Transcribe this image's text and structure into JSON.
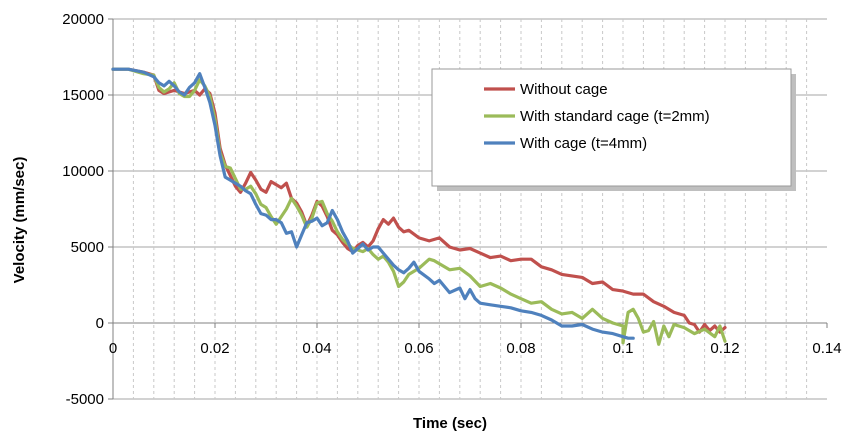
{
  "chart_data": {
    "type": "line",
    "title": "",
    "xlabel": "Time (sec)",
    "ylabel": "Velocity (mm/sec)",
    "xlim": [
      0,
      0.14
    ],
    "ylim": [
      -5000,
      20000
    ],
    "x_ticks": [
      "0",
      "0.02",
      "0.04",
      "0.06",
      "0.08",
      "0.1",
      "0.12",
      "0.14"
    ],
    "y_ticks": [
      "20000",
      "15000",
      "10000",
      "5000",
      "0",
      "-5000"
    ],
    "grid": "horizontal major, vertical dashed minor",
    "legend_position": "top-right",
    "series": [
      {
        "name": "Without cage",
        "color": "#c0504d",
        "points": [
          [
            0,
            16700
          ],
          [
            0.003,
            16700
          ],
          [
            0.006,
            16500
          ],
          [
            0.008,
            16300
          ],
          [
            0.009,
            15300
          ],
          [
            0.01,
            15100
          ],
          [
            0.012,
            15300
          ],
          [
            0.014,
            15100
          ],
          [
            0.016,
            15300
          ],
          [
            0.017,
            15000
          ],
          [
            0.018,
            15400
          ],
          [
            0.019,
            15100
          ],
          [
            0.02,
            13800
          ],
          [
            0.021,
            11500
          ],
          [
            0.022,
            10400
          ],
          [
            0.023,
            9700
          ],
          [
            0.024,
            9000
          ],
          [
            0.025,
            8600
          ],
          [
            0.026,
            9200
          ],
          [
            0.027,
            9900
          ],
          [
            0.028,
            9400
          ],
          [
            0.029,
            8800
          ],
          [
            0.03,
            8600
          ],
          [
            0.031,
            9300
          ],
          [
            0.033,
            8900
          ],
          [
            0.034,
            9200
          ],
          [
            0.035,
            8200
          ],
          [
            0.036,
            7900
          ],
          [
            0.037,
            7300
          ],
          [
            0.038,
            6400
          ],
          [
            0.039,
            7100
          ],
          [
            0.04,
            8000
          ],
          [
            0.041,
            7700
          ],
          [
            0.042,
            7000
          ],
          [
            0.043,
            6100
          ],
          [
            0.044,
            5800
          ],
          [
            0.045,
            5300
          ],
          [
            0.046,
            4900
          ],
          [
            0.047,
            4700
          ],
          [
            0.048,
            5100
          ],
          [
            0.049,
            5300
          ],
          [
            0.05,
            5000
          ],
          [
            0.051,
            5400
          ],
          [
            0.052,
            6200
          ],
          [
            0.053,
            6800
          ],
          [
            0.054,
            6500
          ],
          [
            0.055,
            6900
          ],
          [
            0.056,
            6300
          ],
          [
            0.057,
            6000
          ],
          [
            0.058,
            6100
          ],
          [
            0.06,
            5600
          ],
          [
            0.062,
            5400
          ],
          [
            0.064,
            5600
          ],
          [
            0.066,
            5000
          ],
          [
            0.068,
            4800
          ],
          [
            0.07,
            4900
          ],
          [
            0.072,
            4600
          ],
          [
            0.074,
            4300
          ],
          [
            0.076,
            4400
          ],
          [
            0.078,
            4100
          ],
          [
            0.08,
            4200
          ],
          [
            0.082,
            4200
          ],
          [
            0.084,
            3700
          ],
          [
            0.086,
            3500
          ],
          [
            0.088,
            3200
          ],
          [
            0.09,
            3100
          ],
          [
            0.092,
            3000
          ],
          [
            0.094,
            2600
          ],
          [
            0.096,
            2700
          ],
          [
            0.098,
            2200
          ],
          [
            0.1,
            2100
          ],
          [
            0.102,
            1900
          ],
          [
            0.104,
            1900
          ],
          [
            0.106,
            1400
          ],
          [
            0.108,
            1100
          ],
          [
            0.11,
            700
          ],
          [
            0.112,
            500
          ],
          [
            0.113,
            0
          ],
          [
            0.114,
            -100
          ],
          [
            0.115,
            -600
          ],
          [
            0.116,
            -100
          ],
          [
            0.117,
            -500
          ],
          [
            0.118,
            -200
          ],
          [
            0.119,
            -600
          ],
          [
            0.12,
            -300
          ]
        ]
      },
      {
        "name": "With standard cage (t=2mm)",
        "color": "#9bbb59",
        "points": [
          [
            0,
            16700
          ],
          [
            0.003,
            16700
          ],
          [
            0.006,
            16400
          ],
          [
            0.008,
            16300
          ],
          [
            0.009,
            15500
          ],
          [
            0.01,
            15200
          ],
          [
            0.011,
            15400
          ],
          [
            0.012,
            15800
          ],
          [
            0.013,
            15100
          ],
          [
            0.014,
            14900
          ],
          [
            0.015,
            14900
          ],
          [
            0.016,
            15300
          ],
          [
            0.017,
            16000
          ],
          [
            0.018,
            15600
          ],
          [
            0.019,
            14900
          ],
          [
            0.02,
            13400
          ],
          [
            0.021,
            11200
          ],
          [
            0.022,
            10300
          ],
          [
            0.023,
            10200
          ],
          [
            0.024,
            9500
          ],
          [
            0.025,
            8800
          ],
          [
            0.026,
            8800
          ],
          [
            0.027,
            9000
          ],
          [
            0.028,
            8500
          ],
          [
            0.029,
            7800
          ],
          [
            0.03,
            7600
          ],
          [
            0.031,
            7000
          ],
          [
            0.032,
            6500
          ],
          [
            0.033,
            7000
          ],
          [
            0.034,
            7500
          ],
          [
            0.035,
            8200
          ],
          [
            0.036,
            7700
          ],
          [
            0.037,
            7100
          ],
          [
            0.038,
            6300
          ],
          [
            0.039,
            6900
          ],
          [
            0.04,
            7900
          ],
          [
            0.041,
            8000
          ],
          [
            0.042,
            7200
          ],
          [
            0.043,
            6700
          ],
          [
            0.044,
            6000
          ],
          [
            0.045,
            5500
          ],
          [
            0.046,
            5200
          ],
          [
            0.047,
            4900
          ],
          [
            0.048,
            4800
          ],
          [
            0.049,
            4700
          ],
          [
            0.05,
            4900
          ],
          [
            0.051,
            4500
          ],
          [
            0.052,
            4200
          ],
          [
            0.053,
            4400
          ],
          [
            0.054,
            4000
          ],
          [
            0.055,
            3400
          ],
          [
            0.056,
            2400
          ],
          [
            0.057,
            2700
          ],
          [
            0.058,
            3200
          ],
          [
            0.06,
            3600
          ],
          [
            0.062,
            4200
          ],
          [
            0.063,
            4100
          ],
          [
            0.064,
            3900
          ],
          [
            0.066,
            3500
          ],
          [
            0.068,
            3600
          ],
          [
            0.07,
            3100
          ],
          [
            0.072,
            2400
          ],
          [
            0.074,
            2600
          ],
          [
            0.076,
            2300
          ],
          [
            0.078,
            1900
          ],
          [
            0.08,
            1600
          ],
          [
            0.082,
            1300
          ],
          [
            0.084,
            1400
          ],
          [
            0.086,
            900
          ],
          [
            0.088,
            600
          ],
          [
            0.09,
            700
          ],
          [
            0.092,
            300
          ],
          [
            0.094,
            900
          ],
          [
            0.096,
            300
          ],
          [
            0.098,
            0
          ],
          [
            0.1,
            -200
          ],
          [
            0.1,
            -1300
          ],
          [
            0.101,
            700
          ],
          [
            0.102,
            900
          ],
          [
            0.103,
            300
          ],
          [
            0.104,
            -600
          ],
          [
            0.105,
            -500
          ],
          [
            0.106,
            100
          ],
          [
            0.107,
            -1400
          ],
          [
            0.108,
            -200
          ],
          [
            0.109,
            -900
          ],
          [
            0.11,
            -100
          ],
          [
            0.112,
            -300
          ],
          [
            0.114,
            -700
          ],
          [
            0.116,
            -400
          ],
          [
            0.118,
            -900
          ],
          [
            0.119,
            -200
          ],
          [
            0.12,
            -1200
          ]
        ]
      },
      {
        "name": "With cage (t=4mm)",
        "color": "#4f81bd",
        "points": [
          [
            0,
            16700
          ],
          [
            0.003,
            16700
          ],
          [
            0.006,
            16500
          ],
          [
            0.008,
            16200
          ],
          [
            0.009,
            15800
          ],
          [
            0.01,
            15600
          ],
          [
            0.011,
            15900
          ],
          [
            0.012,
            15600
          ],
          [
            0.013,
            15200
          ],
          [
            0.014,
            15000
          ],
          [
            0.015,
            15500
          ],
          [
            0.016,
            15800
          ],
          [
            0.017,
            16400
          ],
          [
            0.018,
            15500
          ],
          [
            0.019,
            14500
          ],
          [
            0.02,
            13000
          ],
          [
            0.021,
            11000
          ],
          [
            0.022,
            9600
          ],
          [
            0.023,
            9400
          ],
          [
            0.024,
            9200
          ],
          [
            0.025,
            9000
          ],
          [
            0.026,
            8700
          ],
          [
            0.027,
            8500
          ],
          [
            0.028,
            7800
          ],
          [
            0.029,
            7200
          ],
          [
            0.03,
            7100
          ],
          [
            0.031,
            6800
          ],
          [
            0.032,
            6800
          ],
          [
            0.033,
            6600
          ],
          [
            0.034,
            5900
          ],
          [
            0.035,
            6000
          ],
          [
            0.036,
            5000
          ],
          [
            0.037,
            5800
          ],
          [
            0.038,
            6600
          ],
          [
            0.039,
            6700
          ],
          [
            0.04,
            6900
          ],
          [
            0.041,
            6400
          ],
          [
            0.042,
            6600
          ],
          [
            0.043,
            7400
          ],
          [
            0.044,
            6800
          ],
          [
            0.045,
            6000
          ],
          [
            0.046,
            5400
          ],
          [
            0.047,
            4600
          ],
          [
            0.048,
            4900
          ],
          [
            0.049,
            5200
          ],
          [
            0.05,
            4800
          ],
          [
            0.051,
            5000
          ],
          [
            0.052,
            5000
          ],
          [
            0.053,
            4600
          ],
          [
            0.054,
            4200
          ],
          [
            0.055,
            3800
          ],
          [
            0.056,
            3500
          ],
          [
            0.057,
            3300
          ],
          [
            0.058,
            3600
          ],
          [
            0.059,
            4000
          ],
          [
            0.06,
            3400
          ],
          [
            0.062,
            2900
          ],
          [
            0.063,
            2600
          ],
          [
            0.064,
            2800
          ],
          [
            0.066,
            2000
          ],
          [
            0.068,
            2300
          ],
          [
            0.069,
            1600
          ],
          [
            0.07,
            2200
          ],
          [
            0.071,
            1600
          ],
          [
            0.072,
            1300
          ],
          [
            0.074,
            1200
          ],
          [
            0.076,
            1100
          ],
          [
            0.078,
            1000
          ],
          [
            0.08,
            800
          ],
          [
            0.082,
            700
          ],
          [
            0.084,
            500
          ],
          [
            0.086,
            200
          ],
          [
            0.088,
            -200
          ],
          [
            0.09,
            -200
          ],
          [
            0.092,
            -100
          ],
          [
            0.094,
            -400
          ],
          [
            0.096,
            -600
          ],
          [
            0.098,
            -700
          ],
          [
            0.1,
            -900
          ],
          [
            0.101,
            -1000
          ],
          [
            0.102,
            -1000
          ]
        ]
      }
    ]
  }
}
